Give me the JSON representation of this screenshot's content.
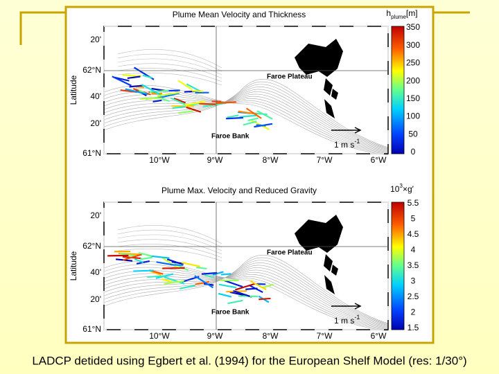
{
  "panels": [
    {
      "title": "Plume Mean Velocity and Thickness",
      "colorbar_label": {
        "base": "h",
        "sub": "plume",
        "unit": "[m]"
      },
      "colorbar_ticks": [
        350,
        300,
        250,
        200,
        150,
        100,
        50,
        0
      ],
      "y_axis_label": "Latitude",
      "lat_labels": [
        "20'",
        "62°N",
        "40'",
        "20'",
        "61°N"
      ],
      "lon_labels": [
        "10°W",
        "9°W",
        "8°W",
        "7°W",
        "6°W"
      ],
      "places": [
        "Faroe Plateau",
        "Faroe Bank"
      ],
      "scale": {
        "text": "1 m s",
        "sup": "-1"
      }
    },
    {
      "title": "Plume Max. Velocity and Reduced Gravity",
      "colorbar_label": {
        "base": "10",
        "sup": "3",
        "unit": "×g′"
      },
      "colorbar_ticks": [
        5.5,
        5,
        4.5,
        4,
        3.5,
        3,
        2.5,
        2,
        1.5
      ],
      "y_axis_label": "Latitude",
      "lat_labels": [
        "20'",
        "62°N",
        "40'",
        "20'",
        "61°N"
      ],
      "lon_labels": [
        "10°W",
        "9°W",
        "8°W",
        "7°W",
        "6°W"
      ],
      "places": [
        "Faroe Plateau",
        "Faroe Bank"
      ],
      "scale": {
        "text": "1 m s",
        "sup": "-1"
      }
    }
  ],
  "caption": "LADCP detided using Egbert et al. (1994) for the European Shelf Model (res: 1/30°)"
}
